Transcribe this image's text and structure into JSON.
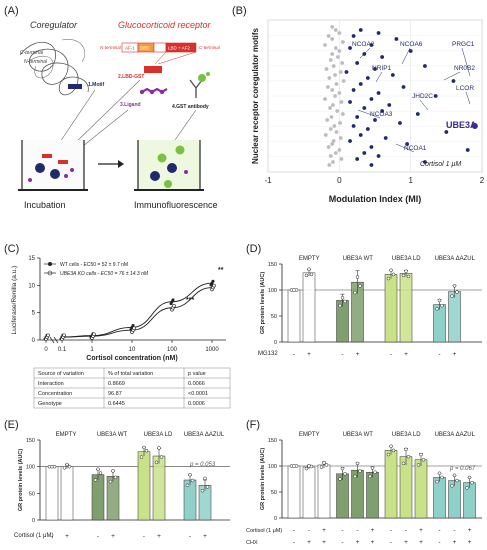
{
  "panels": {
    "A": {
      "label": "(A)",
      "coregulator_title": "Coregulator",
      "gr_title": "Glucocorticoid receptor",
      "c_terminal": "C-terminal",
      "n_terminal": "N-terminal",
      "step1": "1.Motif",
      "domain_n": "N-terminal",
      "domain_af1": "AF-1",
      "domain_dbd": "DBD",
      "domain_lbd": "LBD + AF2",
      "domain_c": "C-terminal",
      "step2": "2.LBD-GST",
      "step3": "3.Ligand",
      "step4": "4.GST antibody",
      "incubation": "Incubation",
      "immuno": "Immunofluorescence",
      "colors": {
        "red": "#d9302c",
        "purple": "#8a2f9e",
        "green": "#7ac143",
        "navy": "#1f2a6b"
      }
    },
    "B": {
      "label": "(B)",
      "ylabel": "Nuclear receptor coregulator motifs",
      "xlabel": "Modulation Index (MI)",
      "note": "Cortisol 1 μM",
      "highlight": "UBE3A",
      "annotations": [
        "NCOA2",
        "NCOA6",
        "PRGC1",
        "NRIP1",
        "NR0B2",
        "LCOR",
        "JHD2C",
        "NCOA3",
        "UBE3A",
        "NCOA1"
      ]
    },
    "C": {
      "label": "(C)",
      "legend_wt": "WT cells - EC50 = 52 ± 9.7 nM",
      "legend_ko": "UBE3A KO cells - EC50 = 76 ± 14.3 nM",
      "sig_100": "***",
      "sig_1000": "**",
      "table_headers": [
        "Source of variation",
        "% of total variation",
        "p value"
      ],
      "table_rows": [
        [
          "Interaction",
          "0.8669",
          "0.0066"
        ],
        [
          "Concentration",
          "96.87",
          "<0.0001"
        ],
        [
          "Genotype",
          "0.6445",
          "0.0006"
        ]
      ]
    },
    "D": {
      "label": "(D)",
      "treatment_label": "MG132",
      "signs": [
        "-",
        "+",
        "-",
        "+",
        "-",
        "+",
        "-",
        "+"
      ]
    },
    "E": {
      "label": "(E)",
      "treatment_label": "Cortisol (1 μM)",
      "pnote": "p = 0.053",
      "signs": [
        "-",
        "+",
        "-",
        "+",
        "-",
        "+",
        "-",
        "+"
      ]
    },
    "F": {
      "label": "(F)",
      "treatment_label": "Cortisol (1 μM)",
      "chx_label": "CHX",
      "pnote": "p = 0.067",
      "cortisol_signs": [
        "-",
        "-",
        "+",
        "-",
        "-",
        "+",
        "-",
        "-",
        "+",
        "-",
        "-",
        "+"
      ],
      "chx_signs": [
        "-",
        "+",
        "+",
        "-",
        "+",
        "+",
        "-",
        "+",
        "+",
        "-",
        "+",
        "+"
      ]
    },
    "groups": [
      "EMPTY",
      "UBE3A WT",
      "UBE3A LD",
      "UBE3A ΔAZUL"
    ],
    "group_colors": [
      "#ffffff",
      "#7f9f6f",
      "#c9e28a",
      "#8fd0c8"
    ]
  },
  "chart_data": [
    {
      "type": "scatter",
      "panel": "B",
      "xlabel": "Modulation Index (MI)",
      "ylabel": "Nuclear receptor coregulator motifs",
      "xlim": [
        -1,
        2
      ],
      "xticks": [
        -1,
        0,
        1,
        2
      ],
      "grid": true,
      "series": [
        {
          "name": "non-significant",
          "color": "#bdbdbd",
          "points": [
            [
              -0.1,
              2
            ],
            [
              -0.05,
              3
            ],
            [
              0.0,
              4
            ],
            [
              -0.15,
              5
            ],
            [
              -0.1,
              6
            ],
            [
              0.05,
              7
            ],
            [
              -0.2,
              8
            ],
            [
              -0.05,
              9
            ],
            [
              0.0,
              10
            ],
            [
              -0.1,
              11
            ],
            [
              -0.02,
              12
            ],
            [
              -0.12,
              13
            ],
            [
              0.04,
              14
            ],
            [
              -0.08,
              15
            ],
            [
              -0.18,
              16
            ],
            [
              0.02,
              17
            ],
            [
              -0.06,
              18
            ],
            [
              -0.14,
              19
            ],
            [
              0.06,
              20
            ],
            [
              -0.04,
              21
            ],
            [
              -0.16,
              22
            ],
            [
              -0.1,
              23
            ],
            [
              0.0,
              24
            ],
            [
              -0.06,
              25
            ],
            [
              -0.2,
              26
            ],
            [
              0.03,
              27
            ],
            [
              -0.09,
              28
            ],
            [
              -0.13,
              29
            ],
            [
              -0.03,
              30
            ],
            [
              0.05,
              31
            ],
            [
              -0.11,
              32
            ],
            [
              -0.17,
              33
            ],
            [
              0.01,
              34
            ],
            [
              -0.07,
              35
            ],
            [
              -0.12,
              36
            ],
            [
              -0.04,
              37
            ],
            [
              -0.19,
              38
            ],
            [
              0.02,
              39
            ],
            [
              -0.08,
              40
            ],
            [
              -0.1,
              41
            ],
            [
              -0.15,
              42
            ],
            [
              0.0,
              43
            ],
            [
              -0.05,
              44
            ],
            [
              -0.12,
              45
            ],
            [
              0.03,
              46
            ],
            [
              -0.09,
              47
            ],
            [
              -0.14,
              48
            ]
          ]
        },
        {
          "name": "significant",
          "color": "#1f2a6b",
          "points": [
            [
              0.3,
              3
            ],
            [
              0.55,
              4
            ],
            [
              0.2,
              5
            ],
            [
              0.8,
              6
            ],
            [
              0.45,
              8
            ],
            [
              0.15,
              9
            ],
            [
              1.0,
              10
            ],
            [
              0.35,
              11
            ],
            [
              0.6,
              12
            ],
            [
              0.25,
              14
            ],
            [
              1.2,
              15
            ],
            [
              0.5,
              16
            ],
            [
              0.1,
              17
            ],
            [
              0.75,
              18
            ],
            [
              0.4,
              19
            ],
            [
              1.6,
              20
            ],
            [
              0.3,
              21
            ],
            [
              0.9,
              22
            ],
            [
              0.2,
              23
            ],
            [
              0.55,
              24
            ],
            [
              1.35,
              25
            ],
            [
              0.45,
              26
            ],
            [
              0.15,
              27
            ],
            [
              0.7,
              28
            ],
            [
              0.35,
              29
            ],
            [
              0.6,
              30
            ],
            [
              1.1,
              31
            ],
            [
              0.25,
              32
            ],
            [
              0.5,
              33
            ],
            [
              0.85,
              34
            ],
            [
              0.2,
              35
            ],
            [
              0.4,
              36
            ],
            [
              1.5,
              37
            ],
            [
              0.3,
              38
            ],
            [
              0.65,
              39
            ],
            [
              0.15,
              40
            ],
            [
              0.95,
              41
            ],
            [
              0.45,
              42
            ],
            [
              1.8,
              43
            ],
            [
              0.35,
              44
            ],
            [
              0.55,
              45
            ],
            [
              0.25,
              46
            ],
            [
              1.2,
              47
            ],
            [
              0.45,
              48
            ]
          ]
        },
        {
          "name": "UBE3A",
          "color": "#3b2a8f",
          "points": [
            [
              1.9,
              35
            ]
          ]
        }
      ]
    },
    {
      "type": "line",
      "panel": "C",
      "xlabel": "Cortisol concentration (nM)",
      "ylabel": "Luciferase/Renilla (a.u.)",
      "xscale": "log",
      "ylim": [
        0,
        15
      ],
      "yticks": [
        0,
        5,
        10,
        15
      ],
      "xticks": [
        0,
        0.1,
        1,
        10,
        100,
        1000
      ],
      "series": [
        {
          "name": "WT",
          "x": [
            0,
            0.1,
            1,
            10,
            100,
            1000
          ],
          "y": [
            0.5,
            0.55,
            0.8,
            2.3,
            7.0,
            10.4
          ]
        },
        {
          "name": "UBE3A KO",
          "x": [
            0,
            0.1,
            1,
            10,
            100,
            1000
          ],
          "y": [
            0.5,
            0.52,
            0.7,
            1.8,
            5.9,
            9.6
          ]
        }
      ]
    },
    {
      "type": "bar",
      "panel": "D",
      "ylabel": "GR protein levels (AUC)",
      "ylim": [
        0,
        150
      ],
      "yticks": [
        0,
        50,
        100,
        150
      ],
      "reference_line": 100,
      "categories": [
        "EMPTY -",
        "EMPTY +",
        "WT -",
        "WT +",
        "LD -",
        "LD +",
        "ΔAZUL -",
        "ΔAZUL +"
      ],
      "values": [
        100,
        133,
        80,
        115,
        130,
        132,
        72,
        97
      ],
      "errors": [
        0,
        6,
        12,
        22,
        8,
        6,
        10,
        12
      ],
      "points": [
        [
          100,
          100,
          100
        ],
        [
          128,
          140,
          130
        ],
        [
          70,
          85,
          78
        ],
        [
          95,
          125,
          108
        ],
        [
          122,
          138,
          130
        ],
        [
          128,
          136,
          126
        ],
        [
          64,
          80,
          70
        ],
        [
          88,
          108,
          96
        ]
      ]
    },
    {
      "type": "bar",
      "panel": "E",
      "ylabel": "GR protein levels (AUC)",
      "ylim": [
        0,
        150
      ],
      "yticks": [
        0,
        50,
        100,
        150
      ],
      "reference_line": 100,
      "categories": [
        "EMPTY -",
        "EMPTY +",
        "WT -",
        "WT +",
        "LD -",
        "LD +",
        "ΔAZUL -",
        "ΔAZUL +"
      ],
      "values": [
        100,
        100,
        85,
        82,
        128,
        120,
        75,
        65
      ],
      "errors": [
        0,
        4,
        10,
        10,
        8,
        14,
        9,
        10
      ],
      "points": [
        [
          100,
          100,
          100
        ],
        [
          98,
          104,
          100
        ],
        [
          75,
          95,
          88
        ],
        [
          72,
          92,
          80
        ],
        [
          118,
          136,
          130
        ],
        [
          108,
          135,
          118
        ],
        [
          65,
          85,
          74
        ],
        [
          55,
          78,
          62
        ]
      ]
    },
    {
      "type": "bar",
      "panel": "F",
      "ylabel": "GR protein levels (AUC)",
      "ylim": [
        0,
        150
      ],
      "yticks": [
        0,
        50,
        100,
        150
      ],
      "reference_line": 100,
      "categories": [
        "EMPTY 1",
        "EMPTY 2",
        "EMPTY 3",
        "WT 1",
        "WT 2",
        "WT 3",
        "LD 1",
        "LD 2",
        "LD 3",
        "ΔAZUL 1",
        "ΔAZUL 2",
        "ΔAZUL 3"
      ],
      "values": [
        100,
        98,
        102,
        85,
        92,
        88,
        130,
        118,
        112,
        78,
        72,
        68
      ],
      "errors": [
        0,
        4,
        6,
        12,
        14,
        10,
        8,
        16,
        12,
        8,
        10,
        10
      ],
      "points": [
        [
          100,
          100,
          100
        ],
        [
          95,
          100,
          99
        ],
        [
          98,
          106,
          102
        ],
        [
          75,
          95,
          85
        ],
        [
          80,
          105,
          90
        ],
        [
          80,
          96,
          88
        ],
        [
          122,
          138,
          130
        ],
        [
          105,
          132,
          118
        ],
        [
          102,
          122,
          112
        ],
        [
          70,
          86,
          78
        ],
        [
          62,
          82,
          72
        ],
        [
          58,
          78,
          68
        ]
      ]
    }
  ]
}
